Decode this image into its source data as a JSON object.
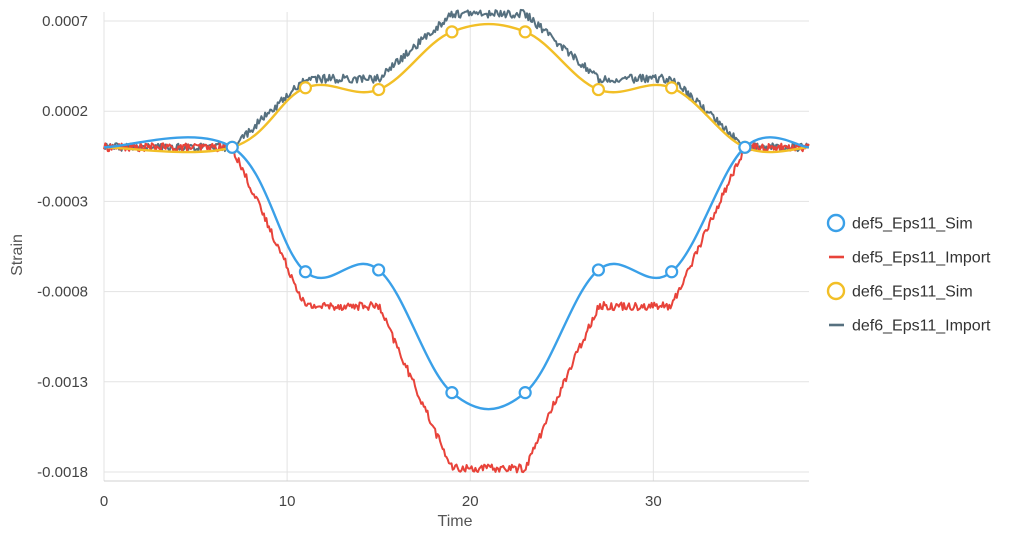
{
  "chart_data": {
    "type": "line",
    "title": "",
    "xlabel": "Time",
    "ylabel": "Strain",
    "xlim": [
      0,
      38.5
    ],
    "ylim": [
      -0.00185,
      0.00075
    ],
    "x_ticks": [
      0,
      10,
      20,
      30
    ],
    "x_tick_labels": [
      "0",
      "10",
      "20",
      "30"
    ],
    "y_ticks": [
      0.0007,
      0.0002,
      -0.0003,
      -0.0008,
      -0.0013,
      -0.0018
    ],
    "y_tick_labels": [
      "0.0007",
      "0.0002",
      "-0.0003",
      "-0.0008",
      "-0.0013",
      "-0.0018"
    ],
    "grid": true,
    "legend_position": "right",
    "series": [
      {
        "name": "def5_Eps11_Sim",
        "style": "smooth-line-with-markers",
        "color": "#3aa0e8",
        "x": [
          0,
          7,
          11,
          15,
          19,
          23,
          27,
          31,
          35,
          38.5
        ],
        "y": [
          0,
          0,
          -0.00069,
          -0.00068,
          -0.00136,
          -0.00136,
          -0.00068,
          -0.00069,
          0,
          0
        ],
        "markers": [
          [
            7,
            0
          ],
          [
            11,
            -0.00069
          ],
          [
            15,
            -0.00068
          ],
          [
            19,
            -0.00136
          ],
          [
            23,
            -0.00136
          ],
          [
            27,
            -0.00068
          ],
          [
            31,
            -0.00069
          ],
          [
            35,
            0
          ]
        ]
      },
      {
        "name": "def5_Eps11_Import",
        "style": "noisy-line",
        "color": "#e8433a",
        "x": [
          0,
          7,
          11,
          15,
          19,
          23,
          27,
          31,
          35,
          38.5
        ],
        "y": [
          0,
          0,
          -0.00088,
          -0.00088,
          -0.00178,
          -0.00178,
          -0.00088,
          -0.00088,
          0,
          0
        ]
      },
      {
        "name": "def6_Eps11_Sim",
        "style": "smooth-line-with-markers",
        "color": "#f2bf27",
        "x": [
          0,
          7,
          11,
          15,
          19,
          23,
          27,
          31,
          35,
          38.5
        ],
        "y": [
          0,
          0,
          0.00033,
          0.00032,
          0.00064,
          0.00064,
          0.00032,
          0.00033,
          0,
          0
        ],
        "markers": [
          [
            7,
            0
          ],
          [
            11,
            0.00033
          ],
          [
            15,
            0.00032
          ],
          [
            19,
            0.00064
          ],
          [
            23,
            0.00064
          ],
          [
            27,
            0.00032
          ],
          [
            31,
            0.00033
          ],
          [
            35,
            0
          ]
        ]
      },
      {
        "name": "def6_Eps11_Import",
        "style": "noisy-line",
        "color": "#56707f",
        "x": [
          0,
          7,
          11,
          15,
          19,
          23,
          27,
          31,
          35,
          38.5
        ],
        "y": [
          0,
          0,
          0.00038,
          0.00038,
          0.00074,
          0.00074,
          0.00038,
          0.00038,
          0,
          0
        ]
      }
    ]
  }
}
